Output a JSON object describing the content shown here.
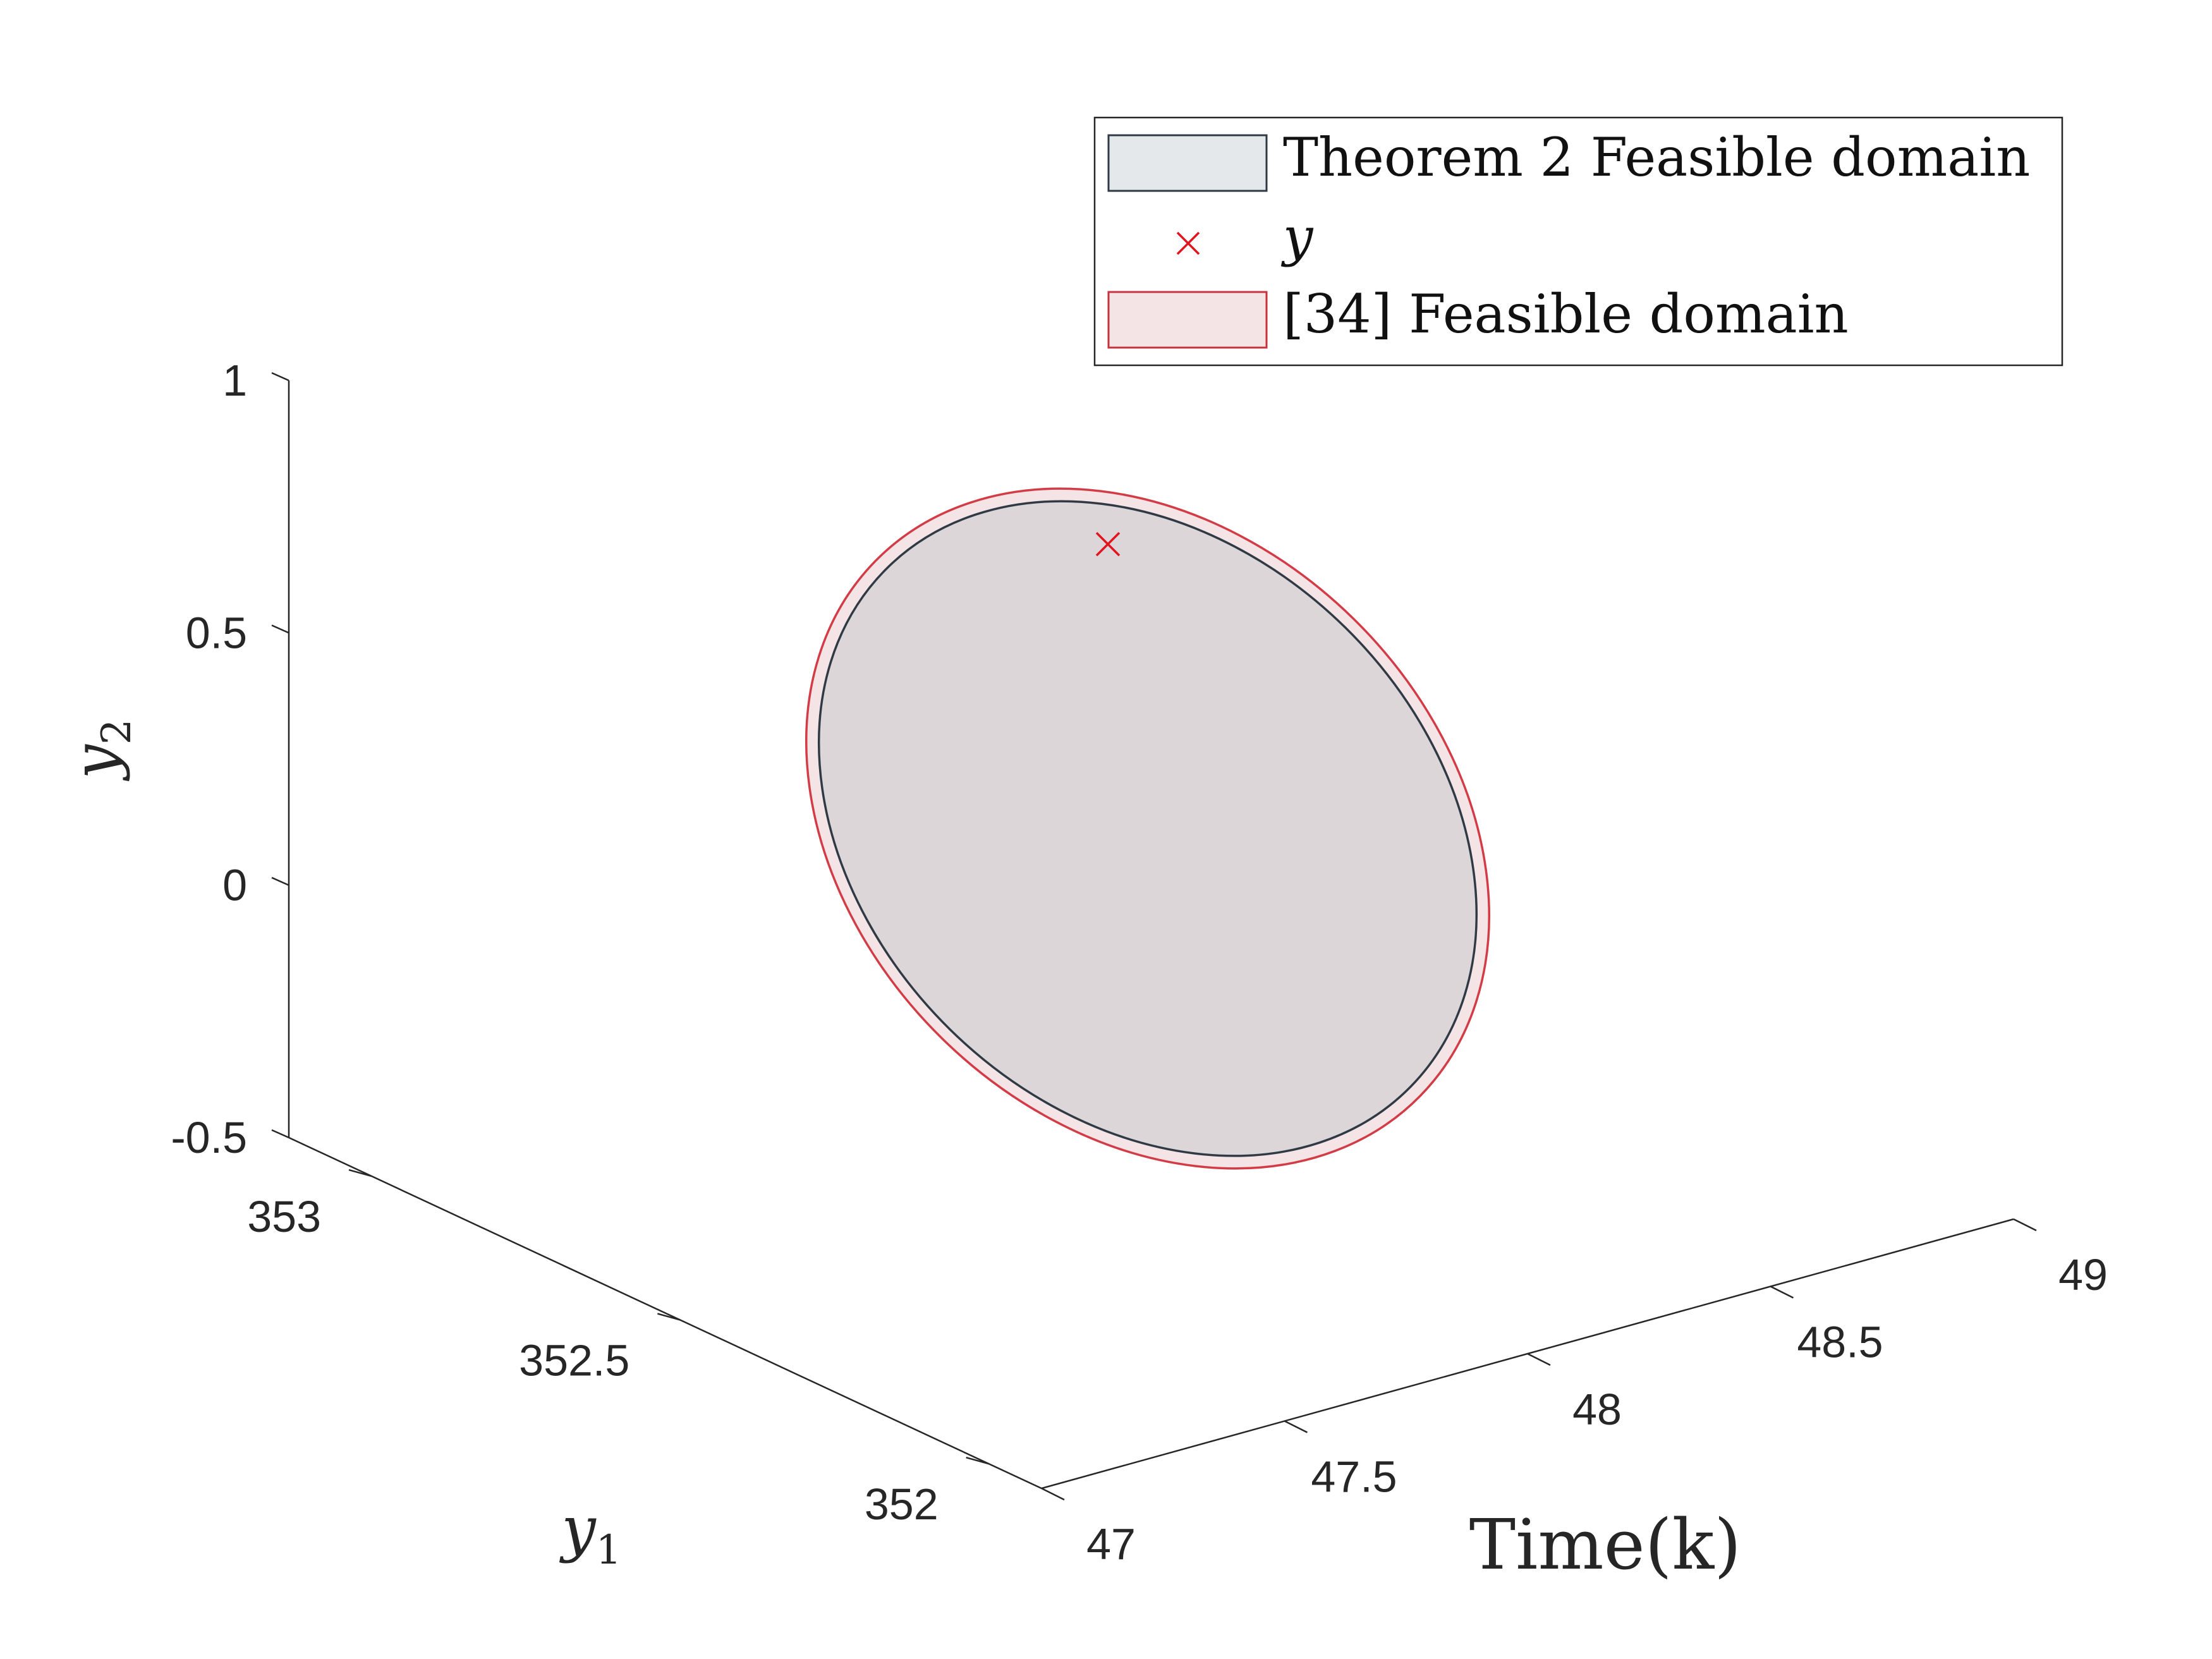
{
  "chart_data": {
    "type": "3d-ellipse",
    "title": "",
    "xlabel": "Time(k)",
    "ylabel": "y_1",
    "zlabel": "y_2",
    "xlim": [
      47,
      49
    ],
    "ylim": [
      352,
      353
    ],
    "zlim": [
      -0.5,
      1
    ],
    "x_ticks": [
      "47",
      "47.5",
      "48",
      "48.5",
      "49"
    ],
    "y_ticks": [
      "352",
      "352.5",
      "353"
    ],
    "z_ticks": [
      "-0.5",
      "0",
      "0.5",
      "1"
    ],
    "grid": false,
    "legend_position": "top-right",
    "legend": [
      {
        "label": "Theorem 2 Feasible domain",
        "marker": "patch",
        "color": "#2f3a44",
        "fill": "#e4e8ea"
      },
      {
        "label": "y",
        "marker": "x",
        "color": "#e0141e"
      },
      {
        "label": "[34] Feasible domain",
        "marker": "patch",
        "color": "#c8323c",
        "fill": "#f5e4e6"
      }
    ],
    "series": [
      {
        "name": "Theorem 2 Feasible domain",
        "kind": "region",
        "color": "#2f3a44",
        "fill": "#dcd6d8"
      },
      {
        "name": "[34] Feasible domain",
        "kind": "region",
        "color": "#d23c46",
        "fill": "#f5e4e6"
      },
      {
        "name": "y",
        "kind": "point",
        "color": "#e0141e",
        "points": [
          {
            "time": 48,
            "y1": 352.55,
            "y2": 0.55
          }
        ]
      }
    ]
  }
}
